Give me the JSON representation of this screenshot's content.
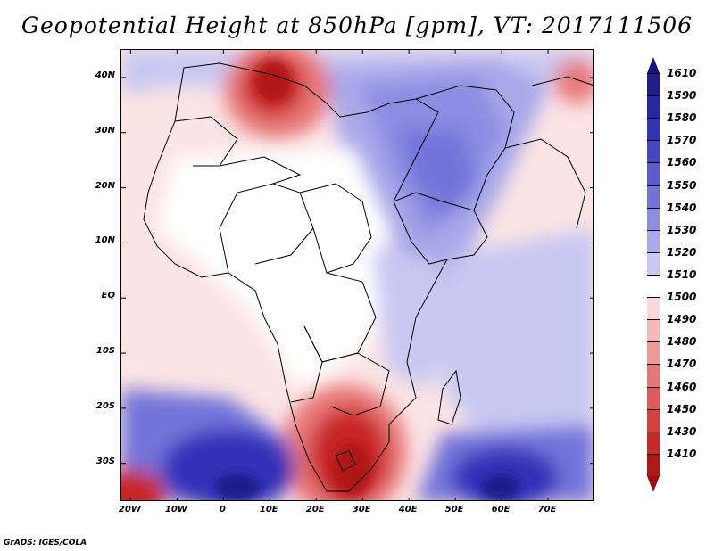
{
  "title": "Geopotential Height at 850hPa [gpm], VT: 2017111506",
  "credit": "GrADS: IGES/COLA",
  "map": {
    "region": "Africa and Arabian Sea",
    "lon_range": [
      -22,
      80
    ],
    "lat_range": [
      -37,
      45
    ],
    "lat_labels": [
      {
        "text": "40N",
        "lat": 40
      },
      {
        "text": "30N",
        "lat": 30
      },
      {
        "text": "20N",
        "lat": 20
      },
      {
        "text": "10N",
        "lat": 10
      },
      {
        "text": "EQ",
        "lat": 0
      },
      {
        "text": "10S",
        "lat": -10
      },
      {
        "text": "20S",
        "lat": -20
      },
      {
        "text": "30S",
        "lat": -30
      }
    ],
    "lon_labels": [
      {
        "text": "20W",
        "lon": -20
      },
      {
        "text": "10W",
        "lon": -10
      },
      {
        "text": "0",
        "lon": 0
      },
      {
        "text": "10E",
        "lon": 10
      },
      {
        "text": "20E",
        "lon": 20
      },
      {
        "text": "30E",
        "lon": 30
      },
      {
        "text": "40E",
        "lon": 40
      },
      {
        "text": "50E",
        "lon": 50
      },
      {
        "text": "60E",
        "lon": 60
      },
      {
        "text": "70E",
        "lon": 70
      }
    ],
    "features": [
      {
        "name": "low-north-africa",
        "lon": 10,
        "lat": 36,
        "value": 1450
      },
      {
        "name": "low-southern-africa",
        "lon": 29,
        "lat": -28,
        "value": 1420
      },
      {
        "name": "low-southwest-corner",
        "lon": -21,
        "lat": -37,
        "value": 1430
      },
      {
        "name": "high-south-atlantic",
        "lon": 3,
        "lat": -34,
        "value": 1575
      },
      {
        "name": "high-south-indian",
        "lon": 61,
        "lat": -34,
        "value": 1570
      },
      {
        "name": "high-arabia",
        "lon": 44,
        "lat": 22,
        "value": 1545
      }
    ]
  },
  "colorbar": {
    "labels": [
      "1610",
      "1590",
      "1580",
      "1570",
      "1560",
      "1550",
      "1540",
      "1530",
      "1520",
      "1510",
      "1500",
      "1490",
      "1480",
      "1470",
      "1460",
      "1450",
      "1430",
      "1410"
    ],
    "colors": [
      "#1e1e8c",
      "#2626a6",
      "#3333b8",
      "#4646c4",
      "#5c5cd0",
      "#7373da",
      "#8c8ce2",
      "#a8a8ea",
      "#c8c8f2",
      "#ffffff",
      "#fbd8d8",
      "#f6b8b8",
      "#ef9898",
      "#e87878",
      "#e05a5a",
      "#d84040",
      "#c82828",
      "#b01818"
    ],
    "top_color": "#14147a",
    "bottom_color": "#9c1010"
  }
}
